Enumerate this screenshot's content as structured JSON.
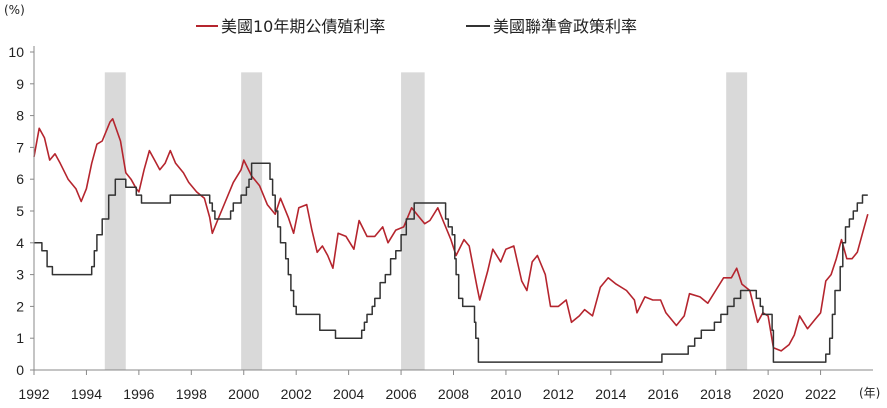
{
  "chart_data": {
    "type": "line",
    "y_unit_label": "(%)",
    "x_unit_label": "(年)",
    "ylim": [
      0,
      10
    ],
    "yticks": [
      0,
      1,
      2,
      3,
      4,
      5,
      6,
      7,
      8,
      9,
      10
    ],
    "xlim": [
      1992,
      2024
    ],
    "xticks": [
      1992,
      1994,
      1996,
      1998,
      2000,
      2002,
      2004,
      2006,
      2008,
      2010,
      2012,
      2014,
      2016,
      2018,
      2020,
      2022
    ],
    "grid": false,
    "legend_position": "top",
    "colors": {
      "yield": "#b5252e",
      "fed": "#333333",
      "recession": "#d9d9d9"
    },
    "shaded_periods": [
      [
        1994.7,
        1995.5
      ],
      [
        1999.9,
        2000.7
      ],
      [
        2006.0,
        2006.9
      ],
      [
        2018.4,
        2019.2
      ]
    ],
    "series": [
      {
        "name": "美國10年期公債殖利率",
        "points": [
          [
            1992.0,
            6.7
          ],
          [
            1992.2,
            7.6
          ],
          [
            1992.4,
            7.3
          ],
          [
            1992.6,
            6.6
          ],
          [
            1992.8,
            6.8
          ],
          [
            1993.0,
            6.5
          ],
          [
            1993.3,
            6.0
          ],
          [
            1993.6,
            5.7
          ],
          [
            1993.8,
            5.3
          ],
          [
            1994.0,
            5.7
          ],
          [
            1994.2,
            6.5
          ],
          [
            1994.4,
            7.1
          ],
          [
            1994.6,
            7.2
          ],
          [
            1994.9,
            7.8
          ],
          [
            1995.0,
            7.9
          ],
          [
            1995.3,
            7.2
          ],
          [
            1995.5,
            6.2
          ],
          [
            1995.7,
            6.0
          ],
          [
            1995.9,
            5.7
          ],
          [
            1996.0,
            5.6
          ],
          [
            1996.2,
            6.3
          ],
          [
            1996.4,
            6.9
          ],
          [
            1996.6,
            6.6
          ],
          [
            1996.8,
            6.3
          ],
          [
            1997.0,
            6.5
          ],
          [
            1997.2,
            6.9
          ],
          [
            1997.4,
            6.5
          ],
          [
            1997.7,
            6.2
          ],
          [
            1997.9,
            5.9
          ],
          [
            1998.2,
            5.6
          ],
          [
            1998.5,
            5.4
          ],
          [
            1998.7,
            4.8
          ],
          [
            1998.8,
            4.3
          ],
          [
            1999.0,
            4.7
          ],
          [
            1999.3,
            5.3
          ],
          [
            1999.6,
            5.9
          ],
          [
            1999.9,
            6.3
          ],
          [
            2000.0,
            6.6
          ],
          [
            2000.3,
            6.1
          ],
          [
            2000.6,
            5.8
          ],
          [
            2000.9,
            5.2
          ],
          [
            2001.2,
            4.9
          ],
          [
            2001.4,
            5.4
          ],
          [
            2001.7,
            4.8
          ],
          [
            2001.9,
            4.3
          ],
          [
            2002.1,
            5.1
          ],
          [
            2002.4,
            5.2
          ],
          [
            2002.6,
            4.4
          ],
          [
            2002.8,
            3.7
          ],
          [
            2003.0,
            3.9
          ],
          [
            2003.2,
            3.6
          ],
          [
            2003.4,
            3.2
          ],
          [
            2003.6,
            4.3
          ],
          [
            2003.9,
            4.2
          ],
          [
            2004.2,
            3.8
          ],
          [
            2004.4,
            4.7
          ],
          [
            2004.7,
            4.2
          ],
          [
            2005.0,
            4.2
          ],
          [
            2005.3,
            4.5
          ],
          [
            2005.5,
            4.0
          ],
          [
            2005.8,
            4.4
          ],
          [
            2006.1,
            4.5
          ],
          [
            2006.4,
            5.1
          ],
          [
            2006.7,
            4.8
          ],
          [
            2006.9,
            4.6
          ],
          [
            2007.1,
            4.7
          ],
          [
            2007.4,
            5.1
          ],
          [
            2007.6,
            4.7
          ],
          [
            2007.9,
            4.1
          ],
          [
            2008.1,
            3.6
          ],
          [
            2008.4,
            4.1
          ],
          [
            2008.6,
            3.9
          ],
          [
            2008.9,
            2.6
          ],
          [
            2009.0,
            2.2
          ],
          [
            2009.3,
            3.1
          ],
          [
            2009.5,
            3.8
          ],
          [
            2009.8,
            3.4
          ],
          [
            2010.0,
            3.8
          ],
          [
            2010.3,
            3.9
          ],
          [
            2010.6,
            2.8
          ],
          [
            2010.8,
            2.5
          ],
          [
            2011.0,
            3.4
          ],
          [
            2011.2,
            3.6
          ],
          [
            2011.5,
            3.0
          ],
          [
            2011.7,
            2.0
          ],
          [
            2012.0,
            2.0
          ],
          [
            2012.3,
            2.2
          ],
          [
            2012.5,
            1.5
          ],
          [
            2012.8,
            1.7
          ],
          [
            2013.0,
            1.9
          ],
          [
            2013.3,
            1.7
          ],
          [
            2013.6,
            2.6
          ],
          [
            2013.9,
            2.9
          ],
          [
            2014.2,
            2.7
          ],
          [
            2014.6,
            2.5
          ],
          [
            2014.9,
            2.2
          ],
          [
            2015.0,
            1.8
          ],
          [
            2015.3,
            2.3
          ],
          [
            2015.6,
            2.2
          ],
          [
            2015.9,
            2.2
          ],
          [
            2016.1,
            1.8
          ],
          [
            2016.5,
            1.4
          ],
          [
            2016.8,
            1.7
          ],
          [
            2017.0,
            2.4
          ],
          [
            2017.4,
            2.3
          ],
          [
            2017.7,
            2.1
          ],
          [
            2018.0,
            2.5
          ],
          [
            2018.3,
            2.9
          ],
          [
            2018.6,
            2.9
          ],
          [
            2018.8,
            3.2
          ],
          [
            2019.0,
            2.7
          ],
          [
            2019.3,
            2.5
          ],
          [
            2019.6,
            1.5
          ],
          [
            2019.8,
            1.8
          ],
          [
            2020.0,
            1.7
          ],
          [
            2020.2,
            0.7
          ],
          [
            2020.5,
            0.6
          ],
          [
            2020.8,
            0.8
          ],
          [
            2021.0,
            1.1
          ],
          [
            2021.2,
            1.7
          ],
          [
            2021.5,
            1.3
          ],
          [
            2021.8,
            1.6
          ],
          [
            2022.0,
            1.8
          ],
          [
            2022.2,
            2.8
          ],
          [
            2022.4,
            3.0
          ],
          [
            2022.6,
            3.5
          ],
          [
            2022.8,
            4.1
          ],
          [
            2023.0,
            3.5
          ],
          [
            2023.2,
            3.5
          ],
          [
            2023.4,
            3.7
          ],
          [
            2023.6,
            4.3
          ],
          [
            2023.8,
            4.9
          ]
        ]
      },
      {
        "name": "美國聯準會政策利率",
        "points": [
          [
            1992.0,
            4.0
          ],
          [
            1992.3,
            4.0
          ],
          [
            1992.3,
            3.75
          ],
          [
            1992.5,
            3.25
          ],
          [
            1992.7,
            3.0
          ],
          [
            1994.1,
            3.0
          ],
          [
            1994.2,
            3.25
          ],
          [
            1994.3,
            3.75
          ],
          [
            1994.4,
            4.25
          ],
          [
            1994.6,
            4.75
          ],
          [
            1994.85,
            5.5
          ],
          [
            1995.1,
            6.0
          ],
          [
            1995.5,
            5.75
          ],
          [
            1995.9,
            5.5
          ],
          [
            1996.1,
            5.25
          ],
          [
            1997.2,
            5.5
          ],
          [
            1998.7,
            5.25
          ],
          [
            1998.8,
            5.0
          ],
          [
            1998.9,
            4.75
          ],
          [
            1999.5,
            5.0
          ],
          [
            1999.6,
            5.25
          ],
          [
            1999.9,
            5.5
          ],
          [
            2000.1,
            5.75
          ],
          [
            2000.2,
            6.0
          ],
          [
            2000.3,
            6.5
          ],
          [
            2001.0,
            6.0
          ],
          [
            2001.1,
            5.5
          ],
          [
            2001.2,
            5.0
          ],
          [
            2001.3,
            4.5
          ],
          [
            2001.4,
            4.0
          ],
          [
            2001.6,
            3.5
          ],
          [
            2001.7,
            3.0
          ],
          [
            2001.8,
            2.5
          ],
          [
            2001.9,
            2.0
          ],
          [
            2002.0,
            1.75
          ],
          [
            2002.9,
            1.25
          ],
          [
            2003.5,
            1.0
          ],
          [
            2004.5,
            1.25
          ],
          [
            2004.6,
            1.5
          ],
          [
            2004.7,
            1.75
          ],
          [
            2004.9,
            2.0
          ],
          [
            2005.0,
            2.25
          ],
          [
            2005.2,
            2.75
          ],
          [
            2005.4,
            3.0
          ],
          [
            2005.6,
            3.5
          ],
          [
            2005.8,
            3.75
          ],
          [
            2006.0,
            4.25
          ],
          [
            2006.2,
            4.75
          ],
          [
            2006.5,
            5.25
          ],
          [
            2007.7,
            4.75
          ],
          [
            2007.8,
            4.5
          ],
          [
            2007.95,
            4.25
          ],
          [
            2008.05,
            3.5
          ],
          [
            2008.1,
            3.0
          ],
          [
            2008.2,
            2.25
          ],
          [
            2008.35,
            2.0
          ],
          [
            2008.8,
            1.5
          ],
          [
            2008.85,
            1.0
          ],
          [
            2008.95,
            0.25
          ],
          [
            2015.95,
            0.5
          ],
          [
            2016.95,
            0.75
          ],
          [
            2017.2,
            1.0
          ],
          [
            2017.45,
            1.25
          ],
          [
            2017.95,
            1.5
          ],
          [
            2018.2,
            1.75
          ],
          [
            2018.45,
            2.0
          ],
          [
            2018.7,
            2.25
          ],
          [
            2018.95,
            2.5
          ],
          [
            2019.55,
            2.25
          ],
          [
            2019.7,
            2.0
          ],
          [
            2019.8,
            1.75
          ],
          [
            2020.15,
            1.25
          ],
          [
            2020.2,
            0.25
          ],
          [
            2022.2,
            0.5
          ],
          [
            2022.35,
            1.0
          ],
          [
            2022.45,
            1.75
          ],
          [
            2022.55,
            2.5
          ],
          [
            2022.75,
            3.25
          ],
          [
            2022.85,
            4.0
          ],
          [
            2022.95,
            4.5
          ],
          [
            2023.1,
            4.75
          ],
          [
            2023.25,
            5.0
          ],
          [
            2023.4,
            5.25
          ],
          [
            2023.6,
            5.5
          ],
          [
            2023.8,
            5.5
          ]
        ]
      }
    ]
  }
}
